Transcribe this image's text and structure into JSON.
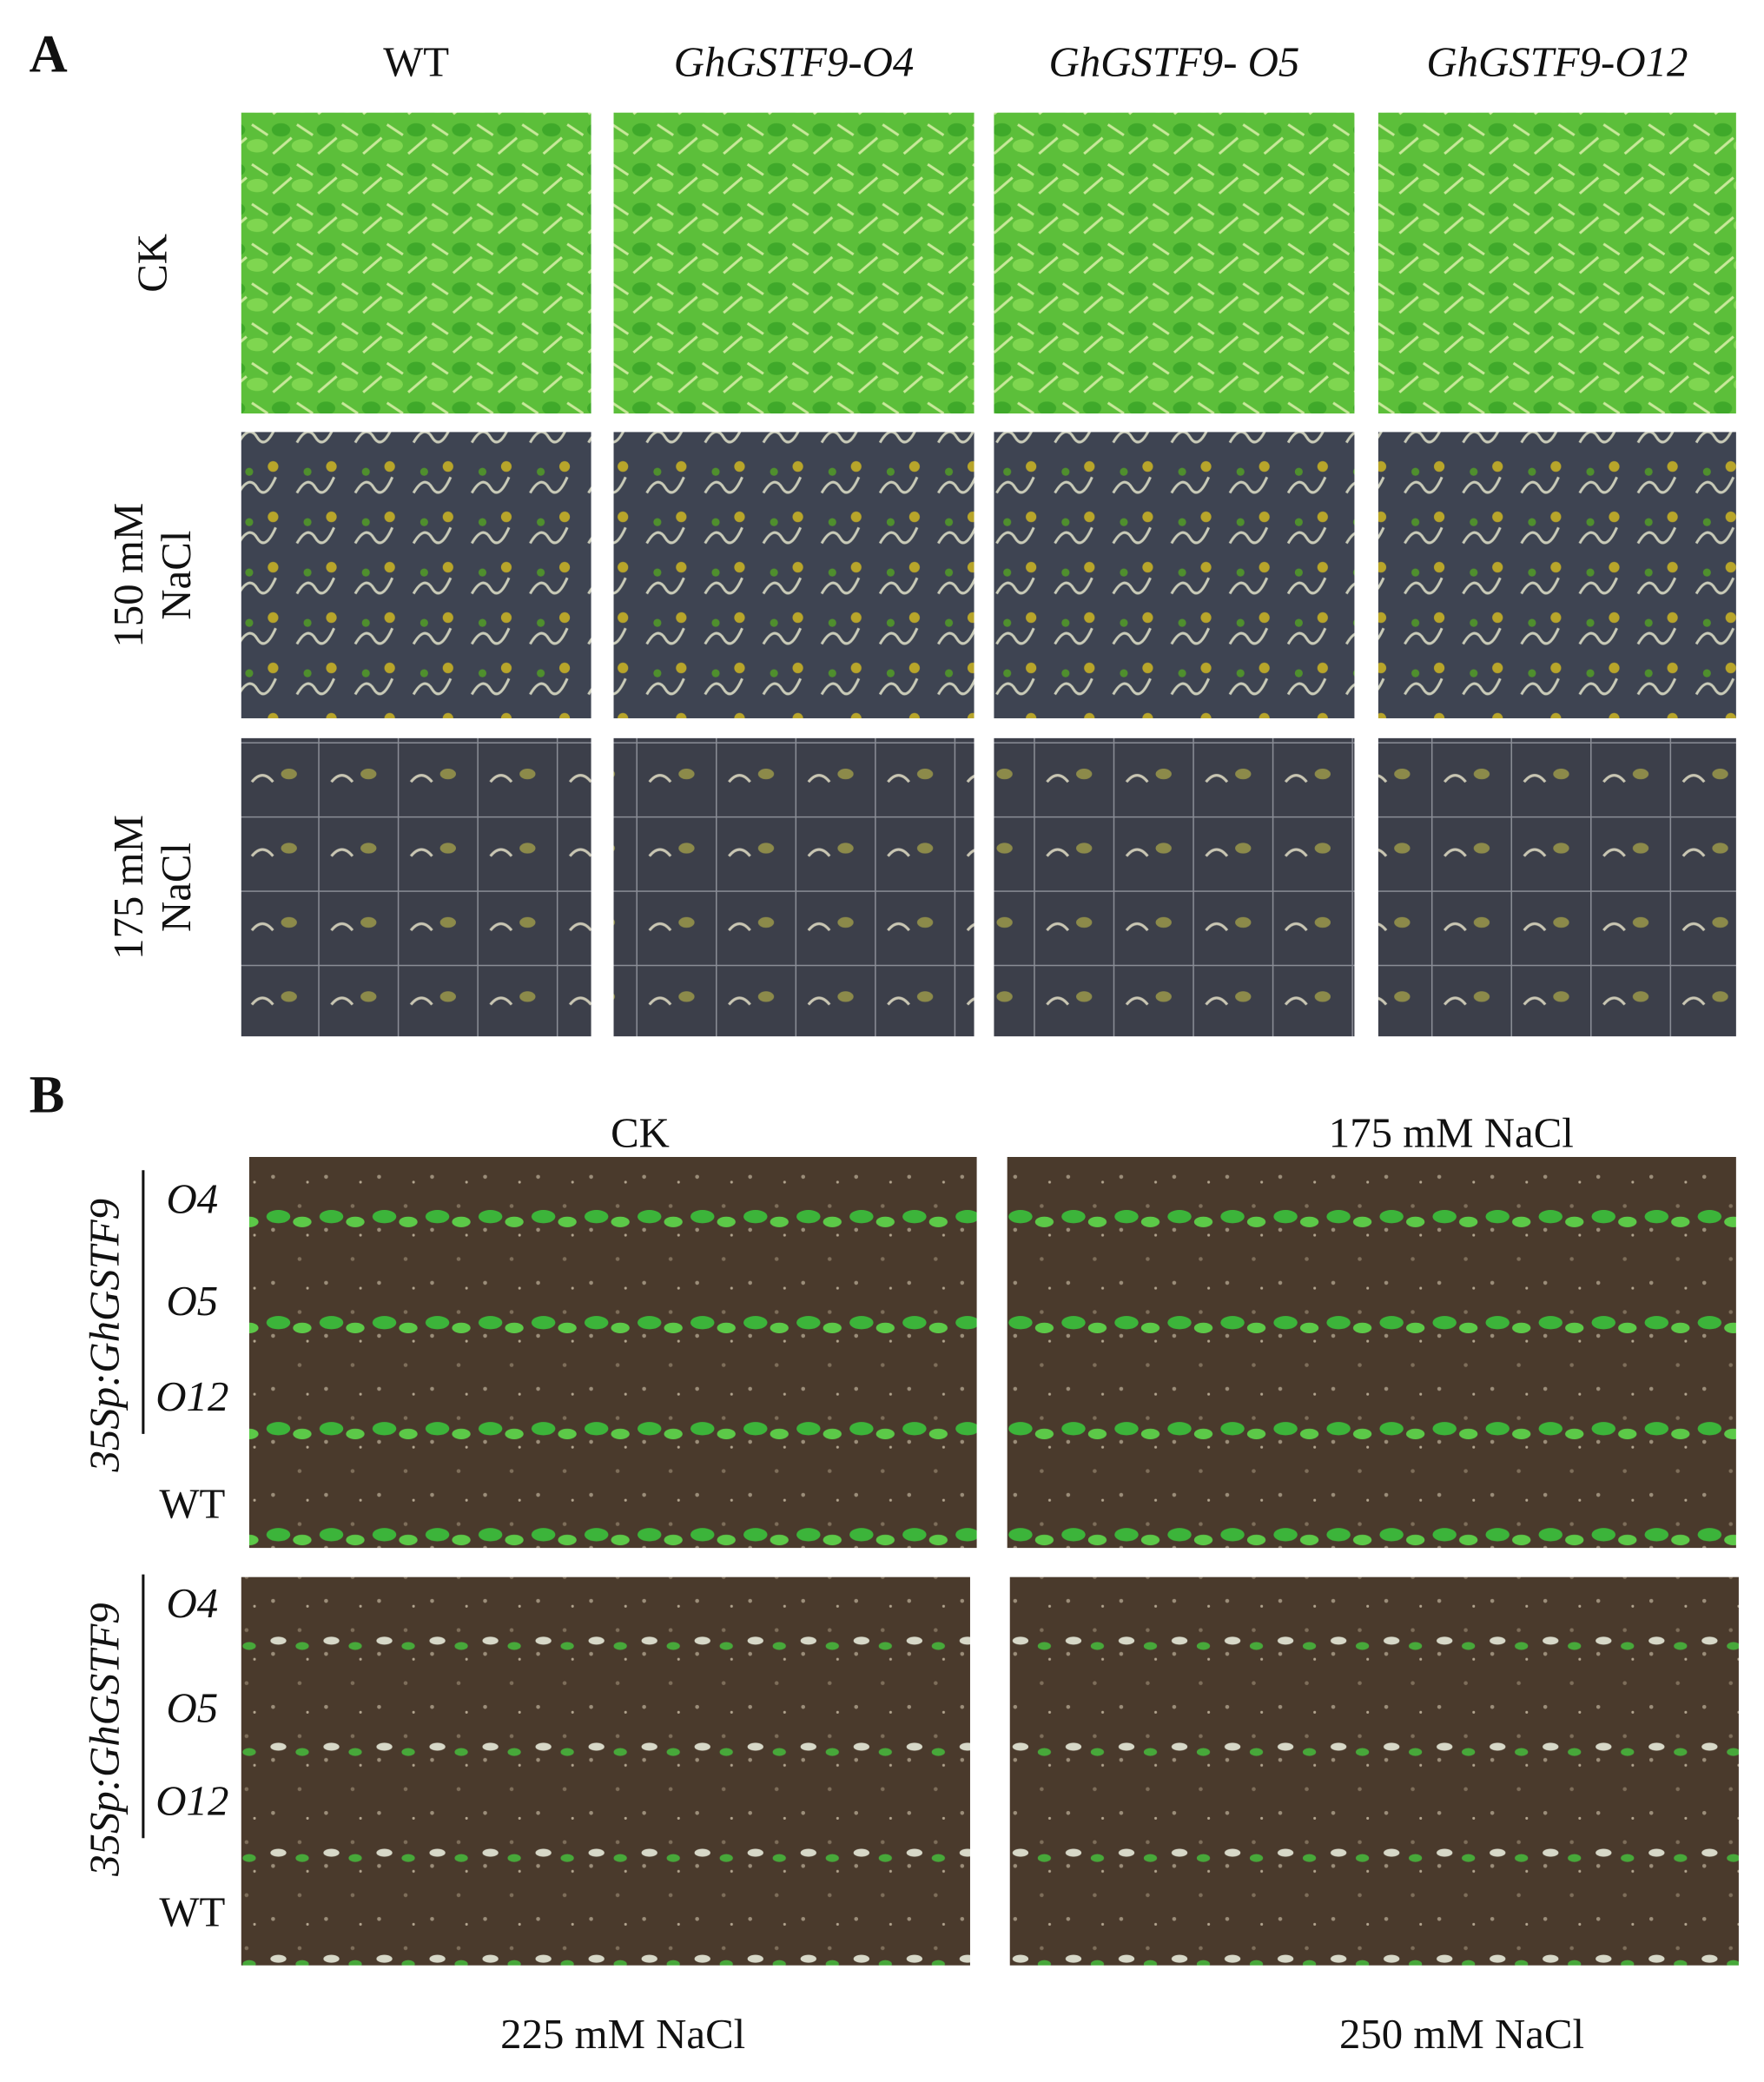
{
  "panel_a": {
    "label": "A",
    "columns": [
      "WT",
      "GhGSTF9-O4",
      "GhGSTF9- O5",
      "GhGSTF9-O12"
    ],
    "rows": [
      [
        "CK"
      ],
      [
        "150 mM",
        "NaCl"
      ],
      [
        "175 mM",
        "NaCl"
      ]
    ]
  },
  "panel_b": {
    "label": "B",
    "construct": "35Sp:GhGSTF9",
    "conditions": [
      "CK",
      "175 mM NaCl",
      "225 mM NaCl",
      "250 mM NaCl"
    ],
    "genotypes": [
      "O4",
      "O5",
      "O12",
      "WT"
    ]
  }
}
